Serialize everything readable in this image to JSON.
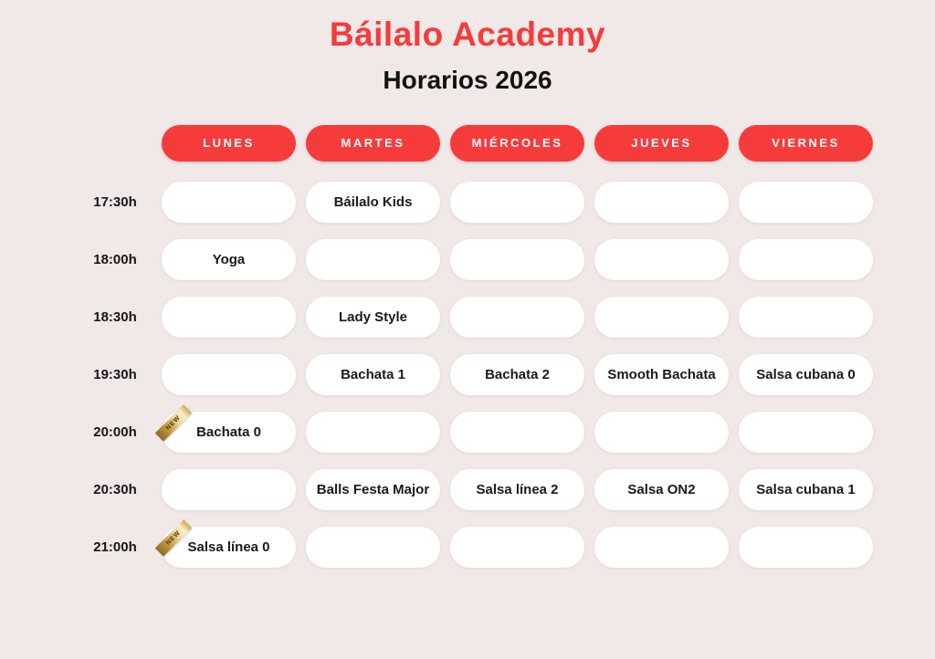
{
  "theme": {
    "background": "#f1e8e8",
    "accent_red": "#f63b3b",
    "cell_white": "#ffffff",
    "text_dark": "#1a1a1a",
    "ribbon_gold": "#c49a3e"
  },
  "header": {
    "title": "Báilalo Academy",
    "subtitle": "Horarios 2026"
  },
  "schedule": {
    "days": [
      "LUNES",
      "MARTES",
      "MIÉRCOLES",
      "JUEVES",
      "VIERNES"
    ],
    "new_badge_label": "NEW",
    "rows": [
      {
        "time": "17:30h",
        "cells": [
          {
            "label": "",
            "new": false
          },
          {
            "label": "Báilalo Kids",
            "new": false
          },
          {
            "label": "",
            "new": false
          },
          {
            "label": "",
            "new": false
          },
          {
            "label": "",
            "new": false
          }
        ]
      },
      {
        "time": "18:00h",
        "cells": [
          {
            "label": "Yoga",
            "new": false
          },
          {
            "label": "",
            "new": false
          },
          {
            "label": "",
            "new": false
          },
          {
            "label": "",
            "new": false
          },
          {
            "label": "",
            "new": false
          }
        ]
      },
      {
        "time": "18:30h",
        "cells": [
          {
            "label": "",
            "new": false
          },
          {
            "label": "Lady Style",
            "new": false
          },
          {
            "label": "",
            "new": false
          },
          {
            "label": "",
            "new": false
          },
          {
            "label": "",
            "new": false
          }
        ]
      },
      {
        "time": "19:30h",
        "cells": [
          {
            "label": "",
            "new": false
          },
          {
            "label": "Bachata 1",
            "new": false
          },
          {
            "label": "Bachata 2",
            "new": false
          },
          {
            "label": "Smooth Bachata",
            "new": false
          },
          {
            "label": "Salsa cubana 0",
            "new": false
          }
        ]
      },
      {
        "time": "20:00h",
        "cells": [
          {
            "label": "Bachata 0",
            "new": true
          },
          {
            "label": "",
            "new": false
          },
          {
            "label": "",
            "new": false
          },
          {
            "label": "",
            "new": false
          },
          {
            "label": "",
            "new": false
          }
        ]
      },
      {
        "time": "20:30h",
        "cells": [
          {
            "label": "",
            "new": false
          },
          {
            "label": "Balls Festa Major",
            "new": false
          },
          {
            "label": "Salsa línea 2",
            "new": false
          },
          {
            "label": "Salsa ON2",
            "new": false
          },
          {
            "label": "Salsa cubana 1",
            "new": false
          }
        ]
      },
      {
        "time": "21:00h",
        "cells": [
          {
            "label": "Salsa línea 0",
            "new": true
          },
          {
            "label": "",
            "new": false
          },
          {
            "label": "",
            "new": false
          },
          {
            "label": "",
            "new": false
          },
          {
            "label": "",
            "new": false
          }
        ]
      }
    ]
  }
}
